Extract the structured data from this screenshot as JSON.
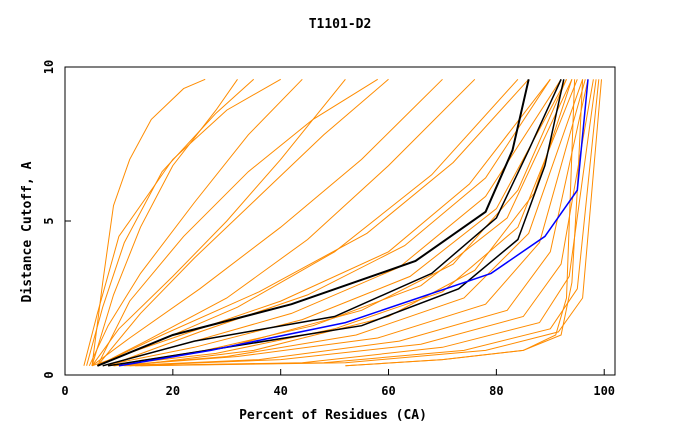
{
  "chart_data": {
    "type": "line",
    "title": "T1101-D2",
    "xlabel": "Percent of Residues (CA)",
    "ylabel": "Distance Cutoff, A",
    "xlim": [
      0,
      102
    ],
    "ylim": [
      0,
      10
    ],
    "x_ticks": [
      0,
      20,
      40,
      60,
      80,
      100
    ],
    "y_ticks": [
      0,
      5,
      10
    ],
    "grid": false,
    "legend": "none",
    "colors": {
      "bundle": "#ff8c00",
      "highlight_primary": "#000000",
      "highlight_secondary": "#000000",
      "best_model": "#0000ff"
    },
    "bundle_series": [
      {
        "x": [
          3.5,
          6,
          10,
          20,
          30,
          40
        ],
        "y": [
          0.3,
          2,
          4.5,
          7,
          8.6,
          9.6
        ]
      },
      {
        "x": [
          4,
          7,
          11,
          18,
          28,
          35
        ],
        "y": [
          0.3,
          2.2,
          4.3,
          6.6,
          8.5,
          9.6
        ]
      },
      {
        "x": [
          5,
          7,
          9,
          12,
          16,
          22,
          26
        ],
        "y": [
          0.3,
          3,
          5.5,
          7,
          8.3,
          9.3,
          9.6
        ]
      },
      {
        "x": [
          4.5,
          8,
          14,
          24,
          34,
          44
        ],
        "y": [
          0.3,
          1.6,
          3.3,
          5.6,
          7.8,
          9.6
        ]
      },
      {
        "x": [
          5,
          10,
          20,
          30,
          40,
          52
        ],
        "y": [
          0.3,
          1.5,
          3.2,
          5,
          7,
          9.6
        ]
      },
      {
        "x": [
          5,
          12,
          25,
          40,
          55,
          70
        ],
        "y": [
          0.3,
          1.2,
          2.8,
          4.8,
          7,
          9.6
        ]
      },
      {
        "x": [
          6,
          15,
          30,
          45,
          60,
          76
        ],
        "y": [
          0.3,
          1.1,
          2.5,
          4.4,
          6.8,
          9.6
        ]
      },
      {
        "x": [
          6,
          16,
          32,
          50,
          68,
          84
        ],
        "y": [
          0.3,
          1,
          2.2,
          4,
          6.5,
          9.6
        ]
      },
      {
        "x": [
          5,
          20,
          40,
          60,
          75,
          90
        ],
        "y": [
          0.3,
          1.2,
          2.4,
          4,
          6.2,
          9.6
        ]
      },
      {
        "x": [
          6,
          18,
          36,
          56,
          72,
          86
        ],
        "y": [
          0.3,
          1.3,
          2.7,
          4.6,
          6.9,
          9.6
        ]
      },
      {
        "x": [
          7,
          22,
          42,
          62,
          78,
          92
        ],
        "y": [
          0.3,
          1,
          2,
          3.5,
          5.8,
          9.6
        ]
      },
      {
        "x": [
          7,
          24,
          44,
          64,
          80,
          93
        ],
        "y": [
          0.3,
          0.9,
          1.8,
          3.2,
          5.4,
          9.6
        ]
      },
      {
        "x": [
          8,
          26,
          46,
          66,
          82,
          94
        ],
        "y": [
          0.3,
          0.8,
          1.6,
          2.9,
          5.1,
          9.6
        ]
      },
      {
        "x": [
          8,
          28,
          50,
          70,
          84,
          95
        ],
        "y": [
          0.3,
          0.7,
          1.5,
          2.7,
          4.8,
          9.6
        ]
      },
      {
        "x": [
          9,
          30,
          54,
          74,
          86,
          96
        ],
        "y": [
          0.3,
          0.6,
          1.3,
          2.5,
          4.6,
          9.6
        ]
      },
      {
        "x": [
          9,
          32,
          58,
          78,
          88,
          96.5
        ],
        "y": [
          0.3,
          0.6,
          1.2,
          2.3,
          4.3,
          9.6
        ]
      },
      {
        "x": [
          10,
          36,
          62,
          82,
          90,
          97
        ],
        "y": [
          0.3,
          0.5,
          1.1,
          2.1,
          4,
          9.6
        ]
      },
      {
        "x": [
          11,
          40,
          66,
          85,
          92,
          98
        ],
        "y": [
          0.3,
          0.5,
          1,
          1.9,
          3.6,
          9.6
        ]
      },
      {
        "x": [
          12,
          44,
          70,
          88,
          93.5,
          98.5
        ],
        "y": [
          0.3,
          0.4,
          0.9,
          1.7,
          3.2,
          9.6
        ]
      },
      {
        "x": [
          13,
          48,
          74,
          90,
          95,
          99
        ],
        "y": [
          0.3,
          0.4,
          0.8,
          1.5,
          2.8,
          9.6
        ]
      },
      {
        "x": [
          14,
          52,
          78,
          91.5,
          96,
          99.5
        ],
        "y": [
          0.3,
          0.4,
          0.8,
          1.4,
          2.5,
          9.6
        ]
      },
      {
        "x": [
          8,
          25,
          45,
          63,
          78,
          90
        ],
        "y": [
          0.3,
          1.4,
          2.6,
          4.2,
          6.4,
          9.6
        ]
      },
      {
        "x": [
          10,
          30,
          55,
          72,
          84,
          93
        ],
        "y": [
          0.3,
          0.9,
          2.1,
          3.6,
          6,
          9.6
        ]
      },
      {
        "x": [
          12,
          35,
          60,
          76,
          87,
          94
        ],
        "y": [
          0.3,
          0.8,
          1.9,
          3.4,
          5.9,
          9.6
        ]
      },
      {
        "x": [
          52,
          70,
          85,
          92,
          94,
          95,
          96
        ],
        "y": [
          0.3,
          0.5,
          0.8,
          1.3,
          3,
          6,
          9.6
        ]
      },
      {
        "x": [
          52,
          70,
          85,
          91,
          93,
          94.5
        ],
        "y": [
          0.3,
          0.5,
          0.8,
          1.3,
          2.5,
          9.6
        ]
      },
      {
        "x": [
          6,
          14,
          24,
          36,
          48,
          60
        ],
        "y": [
          0.3,
          2,
          3.8,
          5.8,
          7.8,
          9.6
        ]
      },
      {
        "x": [
          6,
          12,
          22,
          34,
          46,
          58
        ],
        "y": [
          0.3,
          2.4,
          4.5,
          6.6,
          8.3,
          9.6
        ]
      },
      {
        "x": [
          5,
          9,
          14,
          20,
          28,
          32
        ],
        "y": [
          0.3,
          2.6,
          4.8,
          6.8,
          8.6,
          9.6
        ]
      }
    ],
    "series": [
      {
        "x": [
          6,
          20,
          42,
          65,
          78,
          83,
          86
        ],
        "y": [
          0.3,
          1.3,
          2.3,
          3.7,
          5.3,
          7.3,
          9.6
        ]
      },
      {
        "x": [
          7,
          24,
          50,
          68,
          80,
          86,
          92
        ],
        "y": [
          0.3,
          1.1,
          1.9,
          3.3,
          5.1,
          7.3,
          9.6
        ]
      },
      {
        "x": [
          8,
          30,
          55,
          73,
          84,
          89,
          92.5
        ],
        "y": [
          0.3,
          0.9,
          1.6,
          2.8,
          4.4,
          6.8,
          9.6
        ]
      },
      {
        "x": [
          10,
          27,
          52,
          79,
          89,
          95,
          97
        ],
        "y": [
          0.3,
          0.8,
          1.7,
          3.3,
          4.5,
          6,
          9.6
        ]
      }
    ]
  }
}
